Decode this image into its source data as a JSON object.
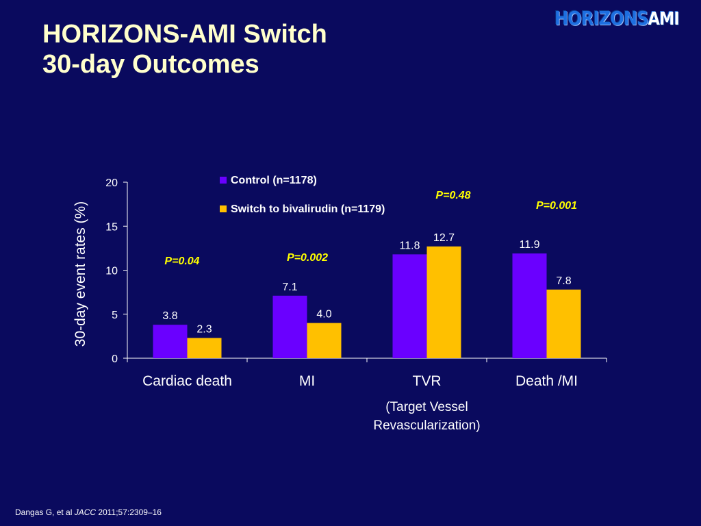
{
  "slide": {
    "title_line1": "HORIZONS-AMI Switch",
    "title_line2": "30-day Outcomes",
    "logo_text_main": "HORIZONS",
    "logo_text_suffix": "AMI",
    "citation_prefix": "Dangas G, et al ",
    "citation_journal": "JACC",
    "citation_suffix": " 2011;57:2309–16"
  },
  "colors": {
    "background": "#0a0a5e",
    "control": "#6a00ff",
    "switch": "#ffc000",
    "title": "#ffffcc",
    "axis": "#ffffff",
    "pvalue": "#ffff00"
  },
  "chart_data": {
    "type": "bar",
    "ylabel": "30-day  event rates (%)",
    "ylim": [
      0,
      20
    ],
    "yticks": [
      0,
      5,
      10,
      15,
      20
    ],
    "grid": false,
    "legend_position": "top-center",
    "categories": [
      "Cardiac death",
      "MI",
      "TVR",
      "Death /MI"
    ],
    "category_sublabels": [
      "",
      "",
      "(Target Vessel\nRevascularization)",
      ""
    ],
    "series": [
      {
        "name": "Control (n=1178)",
        "values": [
          3.8,
          7.1,
          11.8,
          11.9
        ],
        "labels": [
          "3.8",
          "7.1",
          "11.8",
          "11.9"
        ]
      },
      {
        "name": "Switch to bivalirudin (n=1179)",
        "values": [
          2.3,
          4.0,
          12.7,
          7.8
        ],
        "labels": [
          "2.3",
          "4.0",
          "12.7",
          "7.8"
        ]
      }
    ],
    "p_values": [
      "P=0.04",
      "P=0.002",
      "P=0.48",
      "P=0.001"
    ]
  }
}
